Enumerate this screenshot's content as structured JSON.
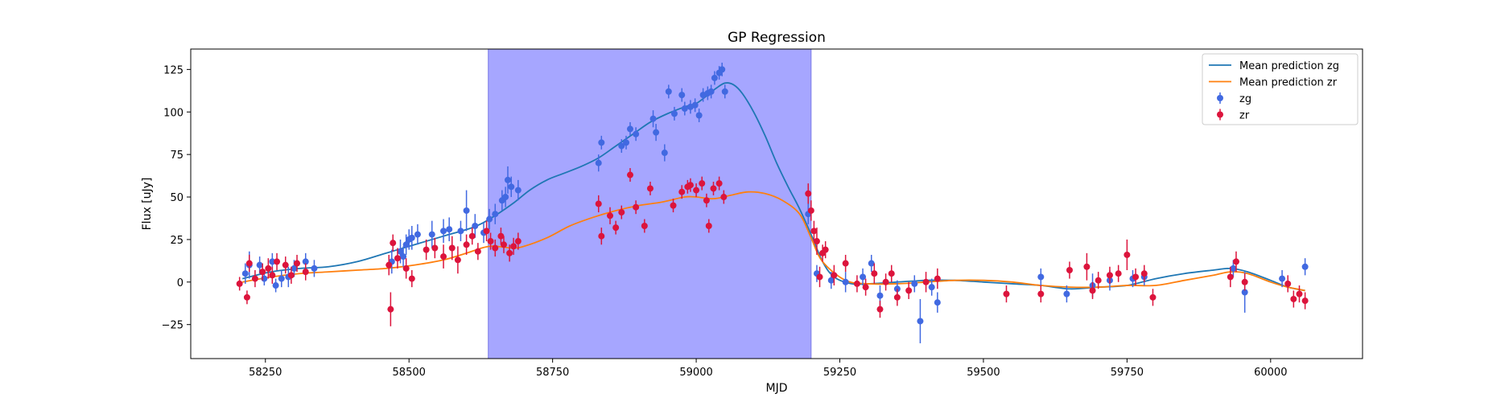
{
  "chart_data": {
    "type": "scatter",
    "title": "GP Regression",
    "xlabel": "MJD",
    "ylabel": "Flux [uJy]",
    "xlim": [
      58120,
      60160
    ],
    "ylim": [
      -45,
      137
    ],
    "xticks": [
      58250,
      58500,
      58750,
      59000,
      59250,
      59500,
      59750,
      60000
    ],
    "yticks": [
      -25,
      0,
      25,
      50,
      75,
      100,
      125
    ],
    "grid": false,
    "legend_position": "top-right",
    "shaded_region": {
      "x_start": 58638,
      "x_end": 59200,
      "color": "#a6a6ff"
    },
    "series": [
      {
        "name": "Mean prediction zg",
        "kind": "line",
        "color": "#1f77b4",
        "x": [
          58210,
          58260,
          58310,
          58360,
          58410,
          58460,
          58510,
          58560,
          58610,
          58640,
          58680,
          58710,
          58740,
          58770,
          58800,
          58830,
          58860,
          58890,
          58920,
          58950,
          58980,
          59000,
          59020,
          59035,
          59050,
          59065,
          59080,
          59100,
          59120,
          59140,
          59160,
          59180,
          59200,
          59220,
          59240,
          59270,
          59300,
          59350,
          59400,
          59450,
          59500,
          59550,
          59600,
          59650,
          59700,
          59750,
          59800,
          59850,
          59900,
          59930,
          59960,
          60000,
          60030,
          60060
        ],
        "y": [
          2,
          6,
          8,
          9,
          12,
          17,
          22,
          27,
          32,
          37,
          46,
          54,
          60,
          64,
          68,
          73,
          80,
          87,
          94,
          99,
          103,
          105,
          110,
          114,
          117,
          116,
          111,
          100,
          86,
          70,
          56,
          43,
          28,
          12,
          3,
          -1,
          -1,
          0,
          1,
          1,
          0,
          -1,
          -2,
          -4,
          -3,
          -2,
          2,
          5,
          7,
          8,
          6,
          1,
          -3,
          -5
        ]
      },
      {
        "name": "Mean prediction zr",
        "kind": "line",
        "color": "#ff7f0e",
        "x": [
          58210,
          58260,
          58310,
          58360,
          58410,
          58460,
          58510,
          58560,
          58600,
          58640,
          58680,
          58700,
          58740,
          58780,
          58820,
          58860,
          58900,
          58940,
          58980,
          59000,
          59030,
          59060,
          59090,
          59120,
          59150,
          59180,
          59200,
          59220,
          59260,
          59300,
          59350,
          59400,
          59450,
          59500,
          59550,
          59600,
          59650,
          59700,
          59750,
          59800,
          59850,
          59900,
          59930,
          59960,
          60000,
          60030,
          60060
        ],
        "y": [
          0,
          3,
          5,
          6,
          7,
          8,
          10,
          13,
          17,
          21,
          20,
          21,
          26,
          33,
          38,
          42,
          45,
          47,
          50,
          50,
          49,
          51,
          53,
          52,
          48,
          40,
          26,
          12,
          1,
          -1,
          -1,
          0,
          1,
          1,
          0,
          -2,
          -3,
          -3,
          -2,
          -2,
          1,
          4,
          6,
          5,
          0,
          -3,
          -5
        ]
      },
      {
        "name": "zg",
        "kind": "errorbar",
        "color": "#4169e1",
        "x": [
          58215,
          58222,
          58240,
          58248,
          58262,
          58268,
          58278,
          58290,
          58300,
          58320,
          58335,
          58470,
          58485,
          58490,
          58495,
          58500,
          58505,
          58515,
          58540,
          58560,
          58570,
          58590,
          58600,
          58615,
          58630,
          58640,
          58650,
          58662,
          58668,
          58672,
          58678,
          58690,
          58830,
          58835,
          58870,
          58878,
          58885,
          58895,
          58925,
          58930,
          58945,
          58952,
          58962,
          58975,
          58980,
          58990,
          58998,
          59005,
          59012,
          59020,
          59026,
          59032,
          59040,
          59045,
          59050,
          59195,
          59210,
          59235,
          59260,
          59290,
          59305,
          59320,
          59350,
          59380,
          59390,
          59410,
          59420,
          59600,
          59645,
          59690,
          59720,
          59760,
          59780,
          59935,
          59955,
          60020,
          60060
        ],
        "y": [
          5,
          10,
          10,
          2,
          12,
          -2,
          2,
          3,
          8,
          12,
          8,
          12,
          18,
          15,
          22,
          25,
          26,
          28,
          28,
          30,
          31,
          30,
          42,
          33,
          29,
          37,
          40,
          48,
          50,
          60,
          56,
          54,
          70,
          82,
          80,
          82,
          90,
          87,
          96,
          88,
          76,
          112,
          99,
          110,
          102,
          103,
          104,
          98,
          110,
          111,
          112,
          120,
          123,
          125,
          112,
          40,
          5,
          1,
          0,
          3,
          11,
          -8,
          -4,
          -1,
          -23,
          -3,
          -12,
          3,
          -7,
          -2,
          1,
          2,
          3,
          8,
          -6,
          2,
          9
        ],
        "yerr": [
          6,
          8,
          5,
          4,
          5,
          4,
          5,
          6,
          5,
          5,
          5,
          7,
          7,
          6,
          6,
          6,
          7,
          6,
          8,
          7,
          7,
          6,
          12,
          7,
          6,
          6,
          6,
          6,
          6,
          8,
          6,
          6,
          5,
          4,
          4,
          4,
          4,
          4,
          5,
          5,
          5,
          4,
          4,
          4,
          4,
          4,
          4,
          4,
          4,
          4,
          4,
          4,
          4,
          4,
          4,
          6,
          5,
          5,
          6,
          5,
          5,
          6,
          5,
          5,
          13,
          5,
          6,
          5,
          5,
          7,
          6,
          5,
          5,
          5,
          12,
          5,
          5
        ]
      },
      {
        "name": "zr",
        "kind": "errorbar",
        "color": "#dc143c",
        "x": [
          58205,
          58218,
          58222,
          58232,
          58245,
          58255,
          58262,
          58270,
          58285,
          58295,
          58305,
          58320,
          58465,
          58468,
          58472,
          58480,
          58495,
          58505,
          58530,
          58545,
          58560,
          58575,
          58585,
          58600,
          58610,
          58620,
          58635,
          58642,
          58650,
          58660,
          58665,
          58675,
          58682,
          58690,
          58830,
          58835,
          58850,
          58860,
          58870,
          58885,
          58895,
          58910,
          58920,
          58960,
          58975,
          58985,
          58990,
          59000,
          59010,
          59018,
          59022,
          59030,
          59040,
          59048,
          59195,
          59200,
          59205,
          59210,
          59215,
          59220,
          59225,
          59240,
          59260,
          59280,
          59295,
          59310,
          59320,
          59330,
          59340,
          59350,
          59370,
          59400,
          59420,
          59540,
          59600,
          59650,
          59680,
          59690,
          59700,
          59720,
          59735,
          59750,
          59765,
          59780,
          59795,
          59930,
          59940,
          59955,
          60030,
          60040,
          60050,
          60060
        ],
        "y": [
          -1,
          -9,
          11,
          2,
          6,
          8,
          4,
          12,
          10,
          4,
          11,
          6,
          10,
          -16,
          23,
          14,
          8,
          2,
          19,
          20,
          15,
          20,
          13,
          22,
          27,
          18,
          30,
          24,
          20,
          27,
          22,
          17,
          21,
          24,
          46,
          27,
          39,
          32,
          41,
          63,
          44,
          33,
          55,
          45,
          53,
          56,
          57,
          54,
          58,
          48,
          33,
          55,
          58,
          50,
          52,
          42,
          30,
          24,
          3,
          17,
          19,
          4,
          11,
          -1,
          -3,
          5,
          -16,
          0,
          5,
          -9,
          -5,
          0,
          2,
          -7,
          -7,
          7,
          9,
          -5,
          1,
          4,
          5,
          16,
          3,
          5,
          -9,
          3,
          12,
          0,
          -1,
          -10,
          -7,
          -11
        ],
        "yerr": [
          4,
          4,
          5,
          5,
          5,
          6,
          5,
          5,
          5,
          5,
          5,
          5,
          6,
          10,
          5,
          6,
          6,
          5,
          6,
          6,
          7,
          7,
          8,
          6,
          5,
          5,
          6,
          5,
          5,
          5,
          5,
          5,
          5,
          5,
          5,
          5,
          5,
          4,
          4,
          4,
          4,
          4,
          4,
          4,
          4,
          4,
          4,
          4,
          4,
          4,
          4,
          4,
          4,
          4,
          6,
          6,
          6,
          8,
          6,
          5,
          5,
          6,
          5,
          5,
          5,
          6,
          5,
          5,
          5,
          5,
          5,
          6,
          6,
          5,
          5,
          5,
          8,
          5,
          5,
          5,
          5,
          9,
          5,
          5,
          5,
          6,
          6,
          5,
          5,
          5,
          5,
          5
        ]
      }
    ]
  }
}
